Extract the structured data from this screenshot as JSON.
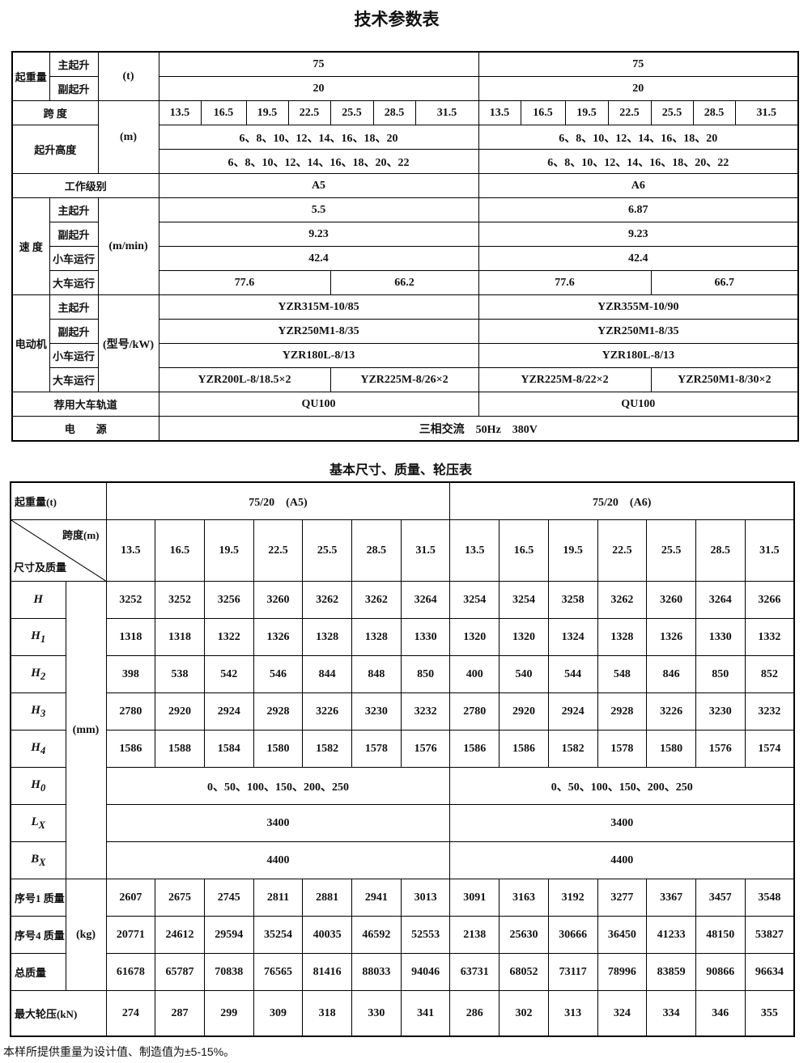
{
  "title": "技术参数表",
  "spec_table": {
    "rows": [
      [
        "起重量",
        "主起升",
        "(t)",
        75,
        75
      ],
      [
        "副起升",
        20,
        20
      ],
      [
        "跨 度",
        "(m)",
        13.5,
        16.5,
        19.5,
        22.5,
        25.5,
        28.5,
        31.5,
        13.5,
        16.5,
        19.5,
        22.5,
        25.5,
        28.5,
        31.5
      ],
      [
        "起升高度",
        "6、8、10、12、14、16、18、20",
        "6、8、10、12、14、16、18、20"
      ],
      [
        "6、8、10、12、14、16、18、20、22",
        "6、8、10、12、14、16、18、20、22"
      ],
      [
        "工作级别",
        "A5",
        "A6"
      ],
      [
        "速 度",
        "主起升",
        "(m/min)",
        5.5,
        6.87
      ],
      [
        "副起升",
        9.23,
        9.23
      ],
      [
        "小车运行",
        42.4,
        42.4
      ],
      [
        "大车运行",
        77.6,
        66.2,
        77.6,
        66.7
      ],
      [
        "电动机",
        "主起升",
        "(型号/kW)",
        "YZR315M-10/85",
        "YZR355M-10/90"
      ],
      [
        "副起升",
        "YZR250M1-8/35",
        "YZR250M1-8/35"
      ],
      [
        "小车运行",
        "YZR180L-8/13",
        "YZR180L-8/13"
      ],
      [
        "大车运行",
        "YZR200L-8/18.5×2",
        "YZR225M-8/26×2",
        "YZR225M-8/22×2",
        "YZR250M1-8/30×2"
      ],
      [
        "荐用大车轨道",
        "QU100",
        "QU100"
      ],
      [
        "电　　源",
        "三相交流　50Hz　380V"
      ]
    ]
  },
  "subtitle": "基本尺寸、质量、轮压表",
  "size_table": {
    "rows": [
      [
        "起重量(t)",
        "75/20　(A5)",
        "75/20　(A6)"
      ],
      [
        {
          "top": "跨度(m)",
          "bottom": "尺寸及质量"
        },
        13.5,
        16.5,
        19.5,
        22.5,
        25.5,
        28.5,
        31.5,
        13.5,
        16.5,
        19.5,
        22.5,
        25.5,
        28.5,
        31.5
      ],
      [
        {
          "symbol": "H"
        },
        "(mm)",
        3252,
        3252,
        3256,
        3260,
        3262,
        3262,
        3264,
        3254,
        3254,
        3258,
        3262,
        3260,
        3264,
        3266
      ],
      [
        {
          "symbol": "H",
          "sub": "1"
        },
        1318,
        1318,
        1322,
        1326,
        1328,
        1328,
        1330,
        1320,
        1320,
        1324,
        1328,
        1326,
        1330,
        1332
      ],
      [
        {
          "symbol": "H",
          "sub": "2"
        },
        398,
        538,
        542,
        546,
        844,
        848,
        850,
        400,
        540,
        544,
        548,
        846,
        850,
        852
      ],
      [
        {
          "symbol": "H",
          "sub": "3"
        },
        2780,
        2920,
        2924,
        2928,
        3226,
        3230,
        3232,
        2780,
        2920,
        2924,
        2928,
        3226,
        3230,
        3232
      ],
      [
        {
          "symbol": "H",
          "sub": "4"
        },
        1586,
        1588,
        1584,
        1580,
        1582,
        1578,
        1576,
        1586,
        1586,
        1582,
        1578,
        1580,
        1576,
        1574
      ],
      [
        {
          "symbol": "H",
          "sub": "0"
        },
        "0、50、100、150、200、250",
        "0、50、100、150、200、250"
      ],
      [
        {
          "symbol": "L",
          "sub": "X"
        },
        3400,
        3400
      ],
      [
        {
          "symbol": "B",
          "sub": "X"
        },
        4400,
        4400
      ],
      [
        "序号1 质量",
        "(kg)",
        2607,
        2675,
        2745,
        2811,
        2881,
        2941,
        3013,
        3091,
        3163,
        3192,
        3277,
        3367,
        3457,
        3548
      ],
      [
        "序号4 质量",
        20771,
        24612,
        29594,
        35254,
        40035,
        46592,
        52553,
        2138,
        25630,
        30666,
        36450,
        41233,
        48150,
        53827
      ],
      [
        "总质量",
        61678,
        65787,
        70838,
        76565,
        81416,
        88033,
        94046,
        63731,
        68052,
        73117,
        78996,
        83859,
        90866,
        96634
      ],
      [
        "最大轮压(kN)",
        274,
        287,
        299,
        309,
        318,
        330,
        341,
        286,
        302,
        313,
        324,
        334,
        346,
        355
      ]
    ]
  },
  "footnote": "本样所提供重量为设计值、制造值为±5-15%。"
}
